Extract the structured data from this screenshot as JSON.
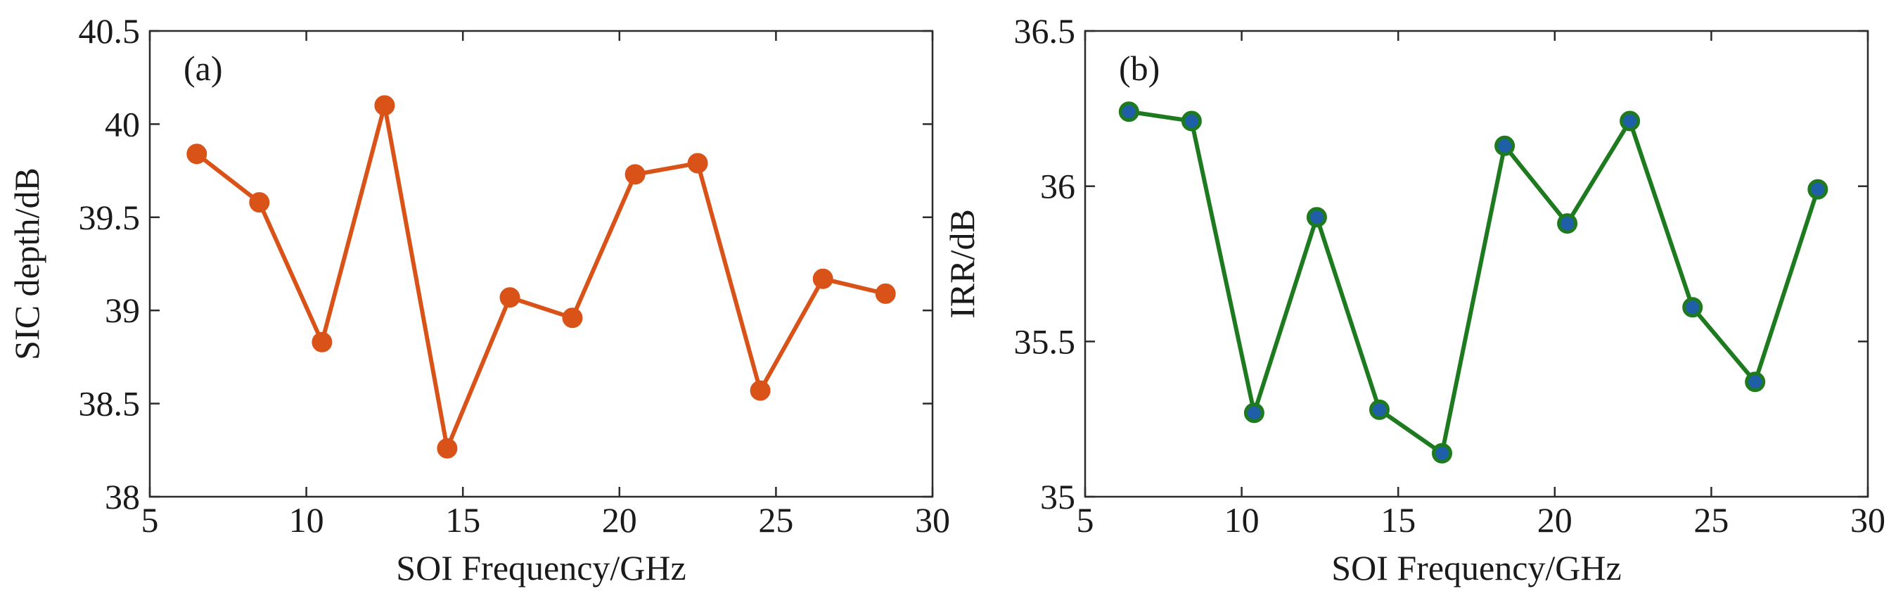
{
  "chart_data": [
    {
      "type": "line",
      "panel_label": "(a)",
      "title": "",
      "xlabel": "SOI Frequency/GHz",
      "ylabel": "SIC depth/dB",
      "xlim": [
        5,
        30
      ],
      "ylim": [
        38,
        40.5
      ],
      "xticks": [
        5,
        10,
        15,
        20,
        25,
        30
      ],
      "yticks": [
        38,
        38.5,
        39,
        39.5,
        40,
        40.5
      ],
      "xtick_labels": [
        "5",
        "10",
        "15",
        "20",
        "25",
        "30"
      ],
      "ytick_labels": [
        "38",
        "38.5",
        "39",
        "39.5",
        "40",
        "40.5"
      ],
      "grid": false,
      "line_color": "#d95319",
      "marker_fill": "#d95319",
      "series": [
        {
          "name": "SIC depth",
          "x": [
            6.5,
            8.5,
            10.5,
            12.5,
            14.5,
            16.5,
            18.5,
            20.5,
            22.5,
            24.5,
            26.5,
            28.5
          ],
          "values": [
            39.84,
            39.58,
            38.83,
            40.1,
            38.26,
            39.07,
            38.96,
            39.73,
            39.79,
            38.57,
            39.17,
            39.09
          ]
        }
      ]
    },
    {
      "type": "line",
      "panel_label": "(b)",
      "title": "",
      "xlabel": "SOI Frequency/GHz",
      "ylabel": "IRR/dB",
      "xlim": [
        5,
        30
      ],
      "ylim": [
        35,
        36.5
      ],
      "xticks": [
        5,
        10,
        15,
        20,
        25,
        30
      ],
      "yticks": [
        35,
        35.5,
        36,
        36.5
      ],
      "xtick_labels": [
        "5",
        "10",
        "15",
        "20",
        "25",
        "30"
      ],
      "ytick_labels": [
        "35",
        "35.5",
        "36",
        "36.5"
      ],
      "grid": false,
      "line_color": "#1e7a1e",
      "marker_fill": "#1f5fa8",
      "series": [
        {
          "name": "IRR",
          "x": [
            6.4,
            8.4,
            10.4,
            12.4,
            14.4,
            16.4,
            18.4,
            20.4,
            22.4,
            24.4,
            26.4,
            28.4
          ],
          "values": [
            36.24,
            36.21,
            35.27,
            35.9,
            35.28,
            35.14,
            36.13,
            35.88,
            36.21,
            35.61,
            35.37,
            35.99
          ]
        }
      ]
    }
  ]
}
